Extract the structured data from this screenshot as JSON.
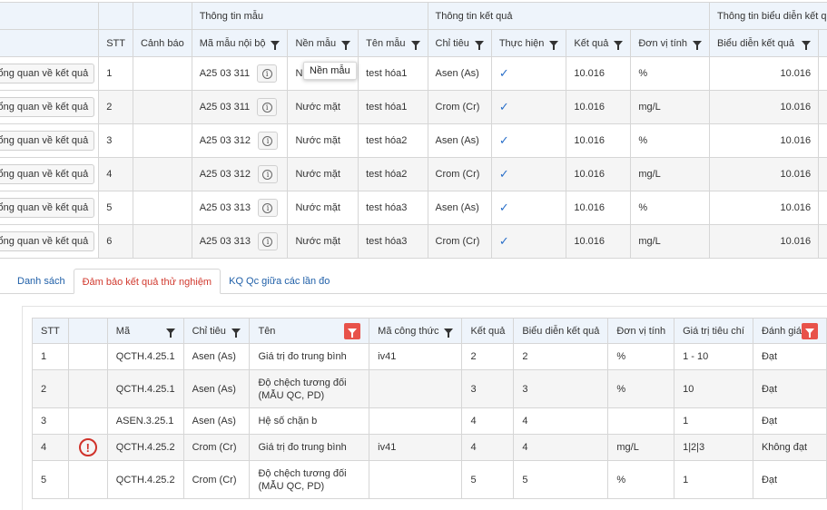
{
  "top_table": {
    "group_headers": {
      "sample_info": "Thông tin mẫu",
      "result_info": "Thông tin kết quả",
      "display_info": "Thông tin biểu diễn kết q"
    },
    "columns": {
      "stt": "STT",
      "warning": "Cảnh báo",
      "internal_code": "Mã mẫu nội bộ",
      "matrix": "Nền mẫu",
      "sample_name": "Tên mẫu",
      "indicator": "Chỉ tiêu",
      "performed": "Thực hiện",
      "result": "Kết quả",
      "unit": "Đơn vị tính",
      "display_result": "Biểu diễn kết quả"
    },
    "overview_button_label": "ổng quan về kết quả",
    "tooltip": "Nền mẫu",
    "rows": [
      {
        "stt": "1",
        "code": "A25 03 311",
        "matrix": "Nư",
        "name": "test hóa1",
        "indicator": "Asen (As)",
        "result": "10.016",
        "unit": "%",
        "display": "10.016"
      },
      {
        "stt": "2",
        "code": "A25 03 311",
        "matrix": "Nước mặt",
        "name": "test hóa1",
        "indicator": "Crom (Cr)",
        "result": "10.016",
        "unit": "mg/L",
        "display": "10.016"
      },
      {
        "stt": "3",
        "code": "A25 03 312",
        "matrix": "Nước mặt",
        "name": "test hóa2",
        "indicator": "Asen (As)",
        "result": "10.016",
        "unit": "%",
        "display": "10.016"
      },
      {
        "stt": "4",
        "code": "A25 03 312",
        "matrix": "Nước mặt",
        "name": "test hóa2",
        "indicator": "Crom (Cr)",
        "result": "10.016",
        "unit": "mg/L",
        "display": "10.016"
      },
      {
        "stt": "5",
        "code": "A25 03 313",
        "matrix": "Nước mặt",
        "name": "test hóa3",
        "indicator": "Asen (As)",
        "result": "10.016",
        "unit": "%",
        "display": "10.016"
      },
      {
        "stt": "6",
        "code": "A25 03 313",
        "matrix": "Nước mặt",
        "name": "test hóa3",
        "indicator": "Crom (Cr)",
        "result": "10.016",
        "unit": "mg/L",
        "display": "10.016"
      }
    ]
  },
  "tabs": [
    {
      "label": "Danh sách"
    },
    {
      "label": "Đảm bảo kết quả thử nghiệm"
    },
    {
      "label": "KQ Qc giữa các lần đo"
    }
  ],
  "bottom_table": {
    "columns": {
      "stt": "STT",
      "code": "Mã",
      "indicator": "Chỉ tiêu",
      "name": "Tên",
      "formula": "Mã công thức",
      "result": "Kết quả",
      "display": "Biểu diễn kết quả",
      "unit": "Đơn vị tính",
      "criteria": "Giá trị tiêu chí",
      "evaluation": "Đánh giá"
    },
    "rows": [
      {
        "stt": "1",
        "code": "QCTH.4.25.1",
        "indicator": "Asen (As)",
        "name": "Giá trị đo trung bình",
        "formula": "iv41",
        "result": "2",
        "display": "2",
        "unit": "%",
        "criteria": "1 - 10",
        "evaluation": "Đạt",
        "warning": false
      },
      {
        "stt": "2",
        "code": "QCTH.4.25.1",
        "indicator": "Asen (As)",
        "name": "Độ chệch tương đối (MẪU QC, PD)",
        "formula": "",
        "result": "3",
        "display": "3",
        "unit": "%",
        "criteria": "10",
        "evaluation": "Đạt",
        "warning": false
      },
      {
        "stt": "3",
        "code": "ASEN.3.25.1",
        "indicator": "Asen (As)",
        "name": "Hệ số chặn b",
        "formula": "",
        "result": "4",
        "display": "4",
        "unit": "",
        "criteria": "1",
        "evaluation": "Đạt",
        "warning": false
      },
      {
        "stt": "4",
        "code": "QCTH.4.25.2",
        "indicator": "Crom (Cr)",
        "name": "Giá trị đo trung bình",
        "formula": "iv41",
        "result": "4",
        "display": "4",
        "unit": "mg/L",
        "criteria": "1|2|3",
        "evaluation": "Không đạt",
        "warning": true
      },
      {
        "stt": "5",
        "code": "QCTH.4.25.2",
        "indicator": "Crom (Cr)",
        "name": "Độ chệch tương đối (MẪU QC, PD)",
        "formula": "",
        "result": "5",
        "display": "5",
        "unit": "%",
        "criteria": "1",
        "evaluation": "Đạt",
        "warning": false
      }
    ]
  },
  "colors": {
    "accent_blue": "#2a6fc9",
    "active_tab_red": "#d13a2f",
    "filter_red": "#e8524a",
    "warning_red": "#d0322a",
    "header_bg": "#eef4fb"
  },
  "icons": {
    "filter": "filter-icon",
    "info": "info-icon",
    "check": "checkmark-icon",
    "warning": "warning-circle-icon"
  }
}
